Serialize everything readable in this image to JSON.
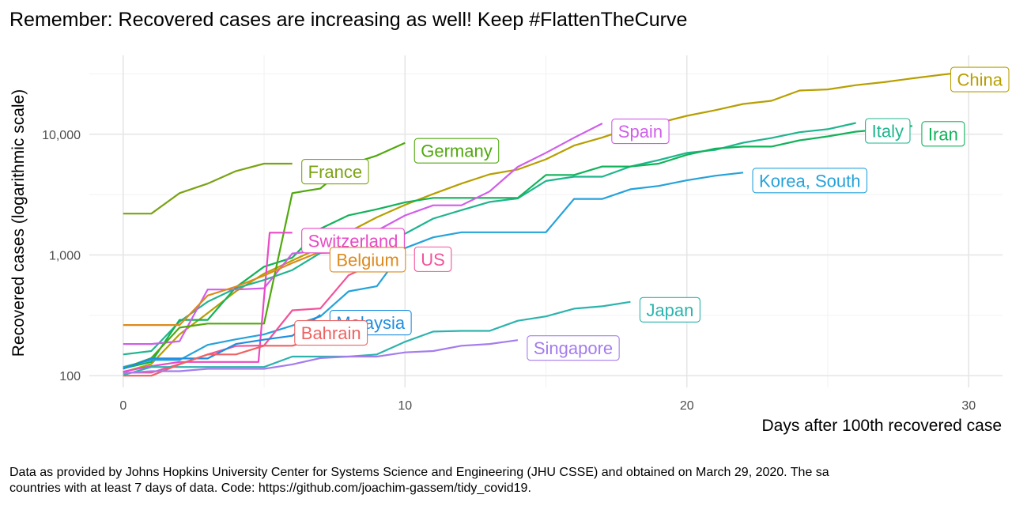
{
  "chart_data": {
    "type": "line",
    "title": "Remember: Recovered cases are increasing as well! Keep #FlattenTheCurve",
    "xlabel": "Days after 100th recovered case",
    "ylabel": "Recovered cases (logarithmic scale)",
    "caption_lines": [
      "Data as provided by Johns Hopkins University Center for Systems Science and Engineering (JHU CSSE) and obtained on March 29, 2020. The sa",
      "countries with at least 7 days of data. Code: https://github.com/joachim-gassem/tidy_covid19."
    ],
    "y_scale": "log10",
    "xlim": [
      -1.2,
      31.2
    ],
    "ylim": [
      80,
      45000
    ],
    "x_ticks": [
      0,
      10,
      20,
      30
    ],
    "x_tick_labels": [
      "0",
      "10",
      "20",
      "30"
    ],
    "x_minor_ticks": [
      5,
      15,
      25
    ],
    "y_ticks": [
      100,
      1000,
      10000
    ],
    "y_tick_labels": [
      "100",
      "1,000",
      "10,000"
    ],
    "y_minor_ticks": [
      316,
      3162,
      31623
    ],
    "grid": true,
    "legend": "direct labels",
    "series": [
      {
        "name": "China",
        "color": "#B79F00",
        "label_side": "right",
        "x": [
          0,
          1,
          2,
          3,
          4,
          5,
          6,
          7,
          8,
          9,
          10,
          11,
          12,
          13,
          14,
          15,
          16,
          17,
          18,
          19,
          20,
          21,
          22,
          23,
          24,
          25,
          26,
          27,
          28,
          29,
          30
        ],
        "values": [
          107,
          125,
          220,
          330,
          500,
          700,
          900,
          1150,
          1550,
          2050,
          2600,
          3200,
          3900,
          4650,
          5100,
          6200,
          8050,
          9400,
          11200,
          12400,
          14200,
          15800,
          17800,
          18900,
          23000,
          23500,
          25500,
          27000,
          29000,
          31000,
          33000
        ]
      },
      {
        "name": "Italy",
        "color": "#1FB58E",
        "label_side": "right",
        "x": [
          0,
          1,
          2,
          3,
          4,
          5,
          6,
          7,
          8,
          9,
          10,
          11,
          12,
          13,
          14,
          15,
          16,
          17,
          18,
          19,
          20,
          21,
          22,
          23,
          24,
          25,
          26
        ],
        "values": [
          150,
          160,
          280,
          410,
          530,
          620,
          750,
          1040,
          1050,
          1400,
          1500,
          2000,
          2350,
          2750,
          2940,
          4100,
          4450,
          4450,
          5400,
          6100,
          7000,
          7400,
          8500,
          9300,
          10400,
          11000,
          12400
        ]
      },
      {
        "name": "Iran",
        "color": "#12B25A",
        "label_side": "right",
        "x": [
          0,
          1,
          2,
          3,
          4,
          5,
          6,
          7,
          8,
          9,
          10,
          11,
          12,
          13,
          14,
          15,
          16,
          17,
          18,
          19,
          20,
          21,
          22,
          23,
          24,
          25,
          26,
          27,
          28
        ],
        "values": [
          115,
          130,
          290,
          290,
          540,
          800,
          950,
          1650,
          2130,
          2390,
          2730,
          2970,
          2970,
          2970,
          2970,
          4600,
          4600,
          5400,
          5400,
          5700,
          6750,
          7600,
          7900,
          7900,
          8900,
          9600,
          10500,
          11000,
          11700
        ]
      },
      {
        "name": "Spain",
        "color": "#D05EEA",
        "label_side": "right",
        "x": [
          0,
          1,
          2,
          3,
          4,
          5,
          6,
          7,
          8,
          9,
          10,
          11,
          12,
          13,
          14,
          15,
          16,
          17
        ],
        "values": [
          183,
          183,
          193,
          517,
          517,
          530,
          1028,
          1081,
          1107,
          1585,
          2125,
          2575,
          2575,
          3355,
          5367,
          7015,
          9357,
          12285
        ]
      },
      {
        "name": "Korea, South",
        "color": "#25A2DA",
        "label_side": "right",
        "x": [
          0,
          1,
          2,
          3,
          4,
          5,
          6,
          7,
          8,
          9,
          10,
          11,
          12,
          13,
          14,
          15,
          16,
          17,
          18,
          19,
          20,
          21,
          22
        ],
        "values": [
          118,
          135,
          135,
          180,
          200,
          220,
          260,
          310,
          500,
          550,
          1140,
          1400,
          1540,
          1540,
          1540,
          1540,
          2910,
          2910,
          3500,
          3730,
          4150,
          4530,
          4811
        ]
      },
      {
        "name": "Germany",
        "color": "#51A80E",
        "label_side": "right",
        "x": [
          0,
          1,
          2,
          3,
          4,
          5,
          6,
          7,
          8,
          9,
          10
        ],
        "values": [
          115,
          140,
          250,
          270,
          270,
          270,
          3250,
          3550,
          5600,
          6650,
          8480
        ]
      },
      {
        "name": "France",
        "color": "#7AA313",
        "label_side": "right",
        "x": [
          0,
          1,
          2,
          3,
          4,
          5,
          6
        ],
        "values": [
          2200,
          2200,
          3250,
          3900,
          4950,
          5700,
          5700
        ]
      },
      {
        "name": "Switzerland",
        "color": "#E84AC6",
        "label_side": "right",
        "x": [
          0,
          1,
          2,
          3,
          4,
          4.8,
          5.2,
          6
        ],
        "values": [
          108,
          120,
          130,
          130,
          130,
          130,
          1530,
          1530
        ]
      },
      {
        "name": "US",
        "color": "#F3539A",
        "label_side": "right",
        "x": [
          0,
          1,
          2,
          3,
          4,
          5,
          6,
          7,
          8,
          9,
          10
        ],
        "values": [
          106,
          106,
          125,
          150,
          176,
          178,
          348,
          361,
          680,
          869,
          1072
        ]
      },
      {
        "name": "Belgium",
        "color": "#DD8A1D",
        "label_side": "right",
        "x": [
          0,
          1,
          2,
          3,
          4,
          5,
          6,
          7
        ],
        "values": [
          263,
          263,
          263,
          461,
          547,
          675,
          858,
          1063
        ]
      },
      {
        "name": "Malaysia",
        "color": "#1E8EE0",
        "label_side": "right",
        "x": [
          0,
          1,
          2,
          3,
          4,
          5,
          6,
          7
        ],
        "values": [
          114,
          139,
          139,
          139,
          183,
          199,
          214,
          320
        ]
      },
      {
        "name": "Japan",
        "color": "#2DB3AE",
        "label_side": "right",
        "x": [
          0,
          1,
          2,
          3,
          4,
          5,
          6,
          7,
          8,
          9,
          10,
          11,
          12,
          13,
          14,
          15,
          16,
          17,
          18
        ],
        "values": [
          101,
          118,
          118,
          118,
          118,
          118,
          144,
          144,
          144,
          150,
          191,
          232,
          235,
          235,
          285,
          310,
          359,
          376,
          409
        ]
      },
      {
        "name": "Bahrain",
        "color": "#EE6362",
        "label_side": "left",
        "x": [
          0,
          1,
          2,
          3,
          4,
          5,
          6,
          7,
          8,
          9
        ],
        "values": [
          100,
          100,
          124,
          150,
          150,
          177,
          177,
          206,
          230,
          263
        ]
      },
      {
        "name": "Singapore",
        "color": "#A47CEE",
        "label_side": "right",
        "x": [
          0,
          1,
          2,
          3,
          4,
          5,
          6,
          7,
          8,
          9,
          10,
          11,
          12,
          13,
          14
        ],
        "values": [
          105,
          109,
          109,
          114,
          114,
          114,
          124,
          140,
          144,
          144,
          156,
          160,
          177,
          183,
          197
        ]
      }
    ]
  }
}
